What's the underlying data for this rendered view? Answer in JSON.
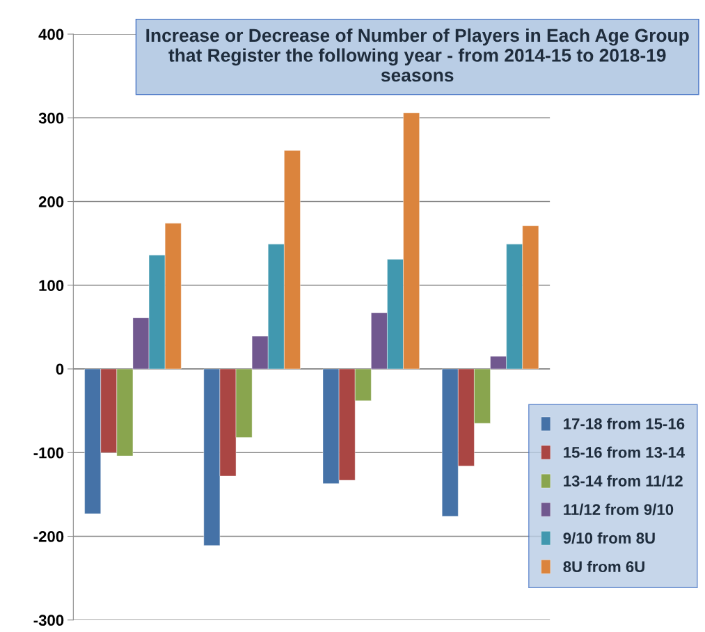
{
  "chart_data": {
    "type": "bar",
    "title": "Increase or Decrease of Number of Players in Each Age Group that Register the following year - from 2014-15 to 2018-19 seasons",
    "categories": [
      null,
      null,
      null,
      null
    ],
    "series": [
      {
        "name": "17-18 from 15-16",
        "color": "#4572a7",
        "values": [
          -173,
          -211,
          -137,
          -176
        ]
      },
      {
        "name": "15-16 from 13-14",
        "color": "#aa4643",
        "values": [
          -100,
          -128,
          -133,
          -116
        ]
      },
      {
        "name": "13-14 from 11/12",
        "color": "#89a54e",
        "values": [
          -104,
          -82,
          -38,
          -65
        ]
      },
      {
        "name": "11/12 from 9/10",
        "color": "#71588f",
        "values": [
          61,
          39,
          67,
          15
        ]
      },
      {
        "name": "9/10 from 8U",
        "color": "#4198af",
        "values": [
          136,
          149,
          131,
          149
        ]
      },
      {
        "name": "8U from 6U",
        "color": "#db843d",
        "values": [
          174,
          261,
          306,
          171
        ]
      }
    ],
    "ylim": [
      -300,
      400
    ],
    "yticks": [
      -300,
      -200,
      -100,
      0,
      100,
      200,
      300,
      400
    ],
    "grid": "y",
    "legend": "bottom right"
  }
}
